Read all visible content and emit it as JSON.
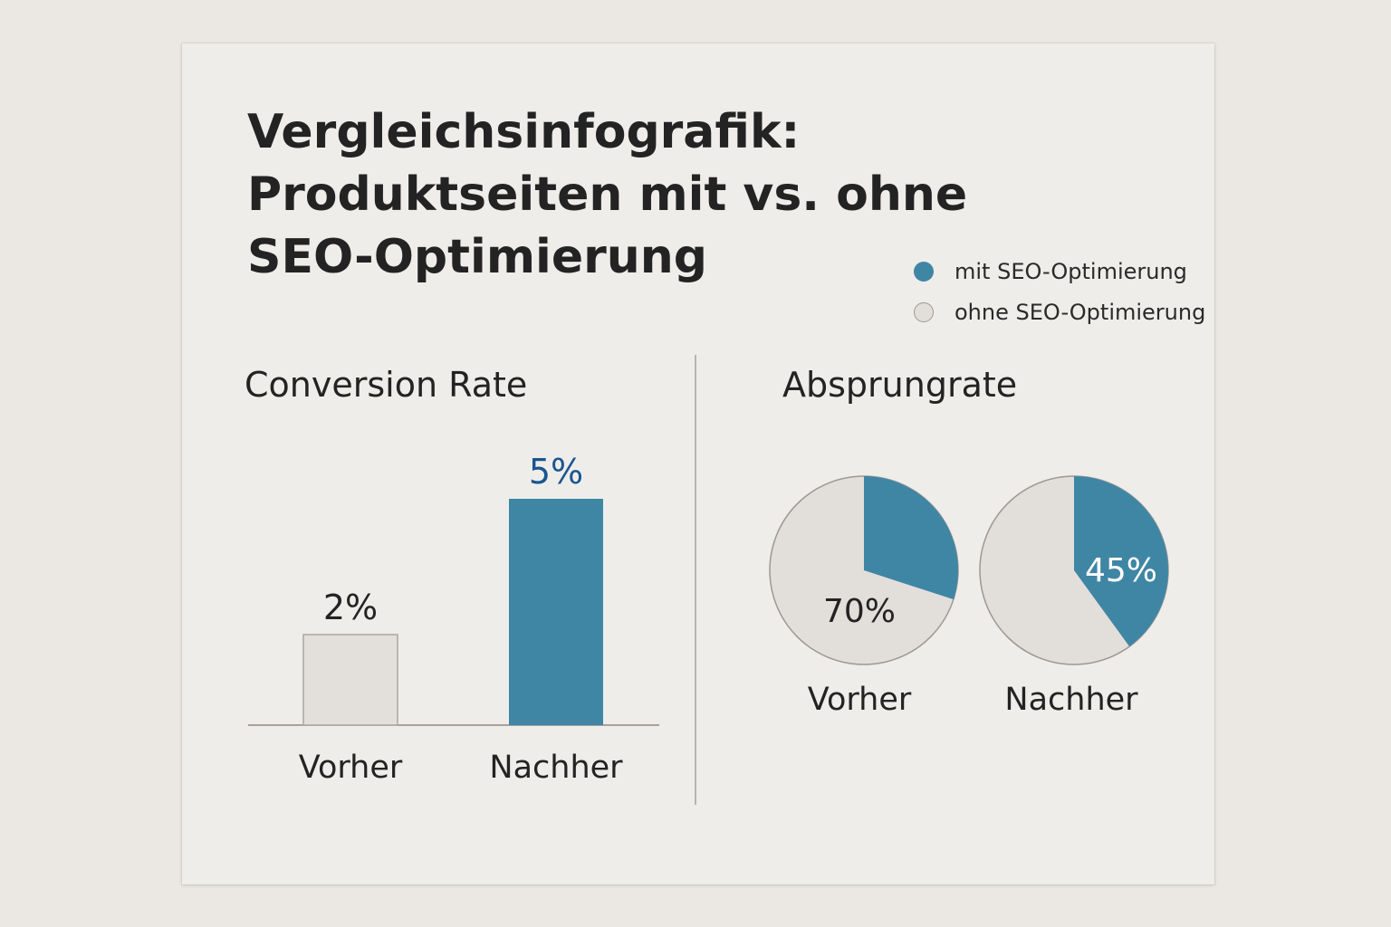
{
  "title_lines": [
    "Vergleichsinfografik:",
    "Produktseiten mit vs. ohne",
    "SEO-Optimierung"
  ],
  "legend": [
    {
      "label": "mit SEO-Optimierung",
      "color": "#3f86a5"
    },
    {
      "label": "ohne SEO-Optimierung",
      "color": "#e2dfdb"
    }
  ],
  "colors": {
    "with_seo": "#3f86a5",
    "without_seo": "#e2dfdb",
    "bar_without_seo": "#e3e0dc",
    "highlight_label": "#1a5590",
    "text": "#232323"
  },
  "chart_data": [
    {
      "type": "bar",
      "title": "Conversion Rate",
      "categories": [
        "Vorher",
        "Nachher"
      ],
      "values": [
        2,
        5
      ],
      "value_labels": [
        "2%",
        "5%"
      ],
      "unit": "%",
      "series_key": [
        "ohne SEO-Optimierung",
        "mit SEO-Optimierung"
      ],
      "ylim": [
        0,
        5
      ],
      "xlabel": "",
      "ylabel": ""
    },
    {
      "type": "pie",
      "title": "Absprungrate",
      "pies": [
        {
          "label": "Vorher",
          "value": 70,
          "value_label": "70%",
          "highlight_share": 30
        },
        {
          "label": "Nachher",
          "value": 45,
          "value_label": "45%",
          "highlight_share": 40
        }
      ]
    }
  ]
}
